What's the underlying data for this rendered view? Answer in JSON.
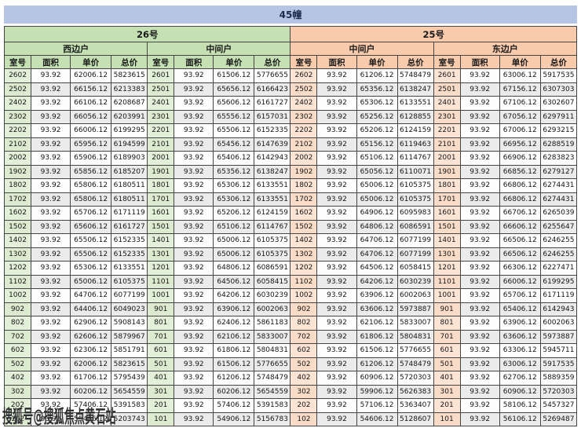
{
  "title": "45幢",
  "watermark": "搜狐号@搜狐焦点黄石站",
  "colors": {
    "banner_bg": "#b7c5e4",
    "green_header": "#c5e0b3",
    "green_room": "#e2efd9",
    "orange_header": "#f8cbad",
    "orange_room": "#fce4d5",
    "alt_row": "#ebebeb",
    "border": "#454545"
  },
  "table": {
    "sections": [
      {
        "building": "26号",
        "units": [
          "西边户",
          "中间户"
        ]
      },
      {
        "building": "25号",
        "units": [
          "中间户",
          "东边户"
        ]
      }
    ],
    "column_headers": [
      "室号",
      "面积",
      "单价",
      "总价"
    ],
    "quadrants": [
      {
        "building": "26号",
        "unit": "西边户",
        "rows": [
          [
            "2602",
            "93.92",
            "62006.12",
            "5823615"
          ],
          [
            "2502",
            "93.92",
            "66156.12",
            "6213383"
          ],
          [
            "2402",
            "93.92",
            "66106.12",
            "6208687"
          ],
          [
            "2302",
            "93.92",
            "66056.12",
            "6203991"
          ],
          [
            "2202",
            "93.92",
            "66006.12",
            "6199295"
          ],
          [
            "2102",
            "93.92",
            "65956.12",
            "6194599"
          ],
          [
            "2002",
            "93.92",
            "65906.12",
            "6189903"
          ],
          [
            "1902",
            "93.92",
            "65856.12",
            "6185207"
          ],
          [
            "1802",
            "93.92",
            "65806.12",
            "6180511"
          ],
          [
            "1702",
            "93.92",
            "65806.12",
            "6180511"
          ],
          [
            "1602",
            "93.92",
            "65706.12",
            "6171119"
          ],
          [
            "1502",
            "93.92",
            "65606.12",
            "6161727"
          ],
          [
            "1402",
            "93.92",
            "65506.12",
            "6152335"
          ],
          [
            "1302",
            "93.92",
            "65506.12",
            "6152335"
          ],
          [
            "1202",
            "93.92",
            "65306.12",
            "6133551"
          ],
          [
            "1102",
            "93.92",
            "65006.12",
            "6105375"
          ],
          [
            "1002",
            "93.92",
            "64706.12",
            "6077199"
          ],
          [
            "902",
            "93.92",
            "64406.12",
            "6049023"
          ],
          [
            "802",
            "93.92",
            "62906.12",
            "5908143"
          ],
          [
            "702",
            "93.92",
            "62606.12",
            "5879967"
          ],
          [
            "602",
            "93.92",
            "62306.12",
            "5851791"
          ],
          [
            "502",
            "93.92",
            "62006.12",
            "5823615"
          ],
          [
            "402",
            "93.92",
            "61706.12",
            "5795439"
          ],
          [
            "302",
            "93.92",
            "60206.12",
            "5654559"
          ],
          [
            "202",
            "93.92",
            "57406.12",
            "5391583"
          ],
          [
            "102",
            "93.92",
            "55406.12",
            "5203743"
          ]
        ]
      },
      {
        "building": "26号",
        "unit": "中间户",
        "rows": [
          [
            "2601",
            "93.92",
            "61506.12",
            "5776655"
          ],
          [
            "2501",
            "93.92",
            "65656.12",
            "6166423"
          ],
          [
            "2401",
            "93.92",
            "65606.12",
            "6161727"
          ],
          [
            "2301",
            "93.92",
            "65556.12",
            "6157031"
          ],
          [
            "2201",
            "93.92",
            "65506.12",
            "6152335"
          ],
          [
            "2101",
            "93.92",
            "65456.12",
            "6147639"
          ],
          [
            "2001",
            "93.92",
            "65406.12",
            "6142943"
          ],
          [
            "1901",
            "93.92",
            "65356.12",
            "6138247"
          ],
          [
            "1801",
            "93.92",
            "65306.12",
            "6133551"
          ],
          [
            "1701",
            "93.92",
            "65306.12",
            "6133551"
          ],
          [
            "1601",
            "93.92",
            "65206.12",
            "6124159"
          ],
          [
            "1501",
            "93.92",
            "65106.12",
            "6114767"
          ],
          [
            "1401",
            "93.92",
            "65006.12",
            "6105375"
          ],
          [
            "1301",
            "93.92",
            "65006.12",
            "6105375"
          ],
          [
            "1201",
            "93.92",
            "64806.12",
            "6086591"
          ],
          [
            "1101",
            "93.92",
            "64506.12",
            "6058415"
          ],
          [
            "1001",
            "93.92",
            "64206.12",
            "6030239"
          ],
          [
            "901",
            "93.92",
            "63906.12",
            "6002063"
          ],
          [
            "801",
            "93.92",
            "62406.12",
            "5861183"
          ],
          [
            "701",
            "93.92",
            "62106.12",
            "5833007"
          ],
          [
            "601",
            "93.92",
            "61806.12",
            "5804831"
          ],
          [
            "501",
            "93.92",
            "61506.12",
            "5776655"
          ],
          [
            "401",
            "93.92",
            "61206.12",
            "5748479"
          ],
          [
            "301",
            "93.92",
            "60206.12",
            "5654559"
          ],
          [
            "201",
            "93.92",
            "57406.12",
            "5391583"
          ],
          [
            "101",
            "93.92",
            "54906.12",
            "5156783"
          ]
        ]
      },
      {
        "building": "25号",
        "unit": "中间户",
        "rows": [
          [
            "2602",
            "93.92",
            "61206.12",
            "5748479"
          ],
          [
            "2502",
            "93.92",
            "65356.12",
            "6138247"
          ],
          [
            "2402",
            "93.92",
            "65306.12",
            "6133551"
          ],
          [
            "2302",
            "93.92",
            "65256.12",
            "6128855"
          ],
          [
            "2202",
            "93.92",
            "65206.12",
            "6124159"
          ],
          [
            "2102",
            "93.92",
            "65156.12",
            "6119463"
          ],
          [
            "2002",
            "93.92",
            "65106.12",
            "6114767"
          ],
          [
            "1902",
            "93.92",
            "65056.12",
            "6110071"
          ],
          [
            "1802",
            "93.92",
            "65006.12",
            "6105375"
          ],
          [
            "1702",
            "93.92",
            "65006.12",
            "6105375"
          ],
          [
            "1602",
            "93.92",
            "64906.12",
            "6095983"
          ],
          [
            "1502",
            "93.92",
            "64806.12",
            "6086591"
          ],
          [
            "1402",
            "93.92",
            "64706.12",
            "6077199"
          ],
          [
            "1302",
            "93.92",
            "64706.12",
            "6077199"
          ],
          [
            "1202",
            "93.92",
            "64506.12",
            "6058415"
          ],
          [
            "1102",
            "93.92",
            "64206.12",
            "6030239"
          ],
          [
            "1002",
            "93.92",
            "63906.12",
            "6002063"
          ],
          [
            "902",
            "93.92",
            "63606.12",
            "5973887"
          ],
          [
            "802",
            "93.92",
            "62106.12",
            "5833007"
          ],
          [
            "702",
            "93.92",
            "61806.12",
            "5804831"
          ],
          [
            "602",
            "93.92",
            "61506.12",
            "5776655"
          ],
          [
            "502",
            "93.92",
            "61206.12",
            "5748479"
          ],
          [
            "402",
            "93.92",
            "60906.12",
            "5720303"
          ],
          [
            "302",
            "93.92",
            "59906.12",
            "5626383"
          ],
          [
            "202",
            "93.92",
            "57106.12",
            "5363407"
          ],
          [
            "102",
            "93.92",
            "54606.12",
            "5128607"
          ]
        ]
      },
      {
        "building": "25号",
        "unit": "东边户",
        "rows": [
          [
            "2601",
            "93.92",
            "63006.12",
            "5917535"
          ],
          [
            "2501",
            "93.92",
            "67156.12",
            "6307303"
          ],
          [
            "2401",
            "93.92",
            "67106.12",
            "6302607"
          ],
          [
            "2301",
            "93.92",
            "67056.12",
            "6297911"
          ],
          [
            "2201",
            "93.92",
            "67006.12",
            "6293215"
          ],
          [
            "2101",
            "93.92",
            "66956.12",
            "6288519"
          ],
          [
            "2001",
            "93.92",
            "66906.12",
            "6283823"
          ],
          [
            "1901",
            "93.92",
            "66856.12",
            "6279127"
          ],
          [
            "1801",
            "93.92",
            "66806.12",
            "6274431"
          ],
          [
            "1701",
            "93.92",
            "66806.12",
            "6274431"
          ],
          [
            "1601",
            "93.92",
            "66706.12",
            "6265039"
          ],
          [
            "1501",
            "93.92",
            "66606.12",
            "6255647"
          ],
          [
            "1401",
            "93.92",
            "66506.12",
            "6246255"
          ],
          [
            "1301",
            "93.92",
            "66506.12",
            "6246255"
          ],
          [
            "1201",
            "93.92",
            "66306.12",
            "6227471"
          ],
          [
            "1101",
            "93.92",
            "66006.12",
            "6199295"
          ],
          [
            "1001",
            "93.92",
            "65706.12",
            "6171119"
          ],
          [
            "901",
            "93.92",
            "65406.12",
            "6142943"
          ],
          [
            "801",
            "93.92",
            "63906.12",
            "6002063"
          ],
          [
            "701",
            "93.92",
            "63606.12",
            "5973887"
          ],
          [
            "601",
            "93.92",
            "63306.12",
            "5945711"
          ],
          [
            "501",
            "93.92",
            "63006.12",
            "5917535"
          ],
          [
            "401",
            "93.92",
            "62706.12",
            "5889359"
          ],
          [
            "301",
            "93.92",
            "60906.12",
            "5720303"
          ],
          [
            "201",
            "93.92",
            "58106.12",
            "5457327"
          ],
          [
            "101",
            "93.92",
            "56106.12",
            "5269487"
          ]
        ]
      }
    ]
  }
}
